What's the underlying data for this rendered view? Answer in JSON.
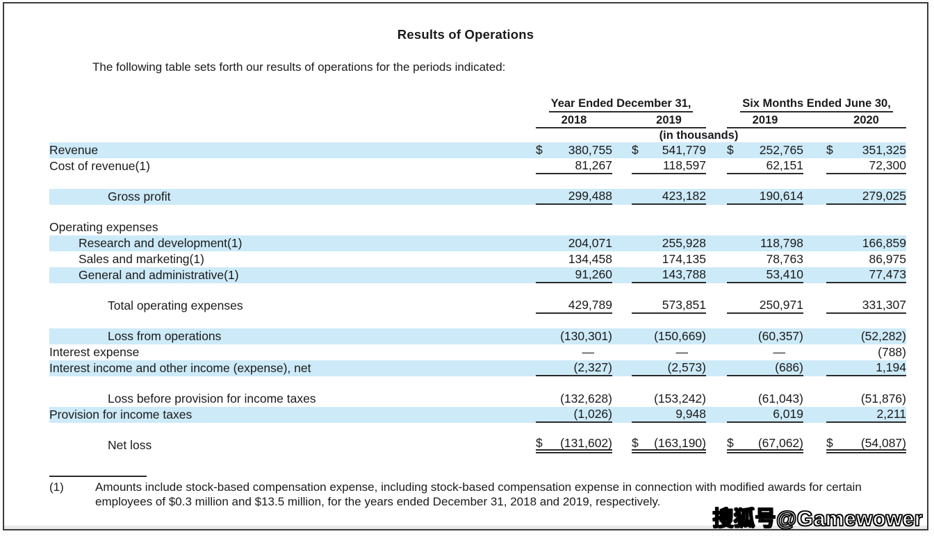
{
  "page": {
    "title": "Results of Operations",
    "intro": "The following table sets forth our results of operations for the periods indicated:"
  },
  "table": {
    "col_groups": [
      {
        "label": "Year Ended December 31,",
        "years": [
          "2018",
          "2019"
        ]
      },
      {
        "label": "Six Months Ended June 30,",
        "years": [
          "2019",
          "2020"
        ]
      }
    ],
    "units_note": "(in thousands)",
    "rows": [
      {
        "label": "Revenue",
        "indent": 0,
        "highlight": true,
        "dollar": true,
        "underline": "none",
        "values": [
          "380,755",
          "541,779",
          "252,765",
          "351,325"
        ]
      },
      {
        "label": "Cost of revenue(1)",
        "indent": 0,
        "highlight": false,
        "dollar": false,
        "underline": "single",
        "values": [
          "81,267",
          "118,597",
          "62,151",
          "72,300"
        ]
      },
      {
        "type": "spacer"
      },
      {
        "label": "Gross profit",
        "indent": 2,
        "highlight": true,
        "dollar": false,
        "underline": "single",
        "values": [
          "299,488",
          "423,182",
          "190,614",
          "279,025"
        ]
      },
      {
        "type": "spacer"
      },
      {
        "label": "Operating expenses",
        "indent": 0,
        "highlight": false,
        "dollar": false,
        "underline": "none",
        "values": null
      },
      {
        "label": "Research and development(1)",
        "indent": 1,
        "highlight": true,
        "dollar": false,
        "underline": "none",
        "values": [
          "204,071",
          "255,928",
          "118,798",
          "166,859"
        ]
      },
      {
        "label": "Sales and marketing(1)",
        "indent": 1,
        "highlight": false,
        "dollar": false,
        "underline": "none",
        "values": [
          "134,458",
          "174,135",
          "78,763",
          "86,975"
        ]
      },
      {
        "label": "General and administrative(1)",
        "indent": 1,
        "highlight": true,
        "dollar": false,
        "underline": "single",
        "values": [
          "91,260",
          "143,788",
          "53,410",
          "77,473"
        ]
      },
      {
        "type": "spacer"
      },
      {
        "label": "Total operating expenses",
        "indent": 2,
        "highlight": false,
        "dollar": false,
        "underline": "single",
        "values": [
          "429,789",
          "573,851",
          "250,971",
          "331,307"
        ]
      },
      {
        "type": "spacer"
      },
      {
        "label": "Loss from operations",
        "indent": 2,
        "highlight": true,
        "dollar": false,
        "underline": "none",
        "values": [
          "(130,301)",
          "(150,669)",
          "(60,357)",
          "(52,282)"
        ]
      },
      {
        "label": "Interest expense",
        "indent": 0,
        "highlight": false,
        "dollar": false,
        "underline": "none",
        "values": [
          "—",
          "—",
          "—",
          "(788)"
        ]
      },
      {
        "label": "Interest income and other income (expense), net",
        "indent": 0,
        "highlight": true,
        "dollar": false,
        "underline": "single",
        "values": [
          "(2,327)",
          "(2,573)",
          "(686)",
          "1,194"
        ]
      },
      {
        "type": "spacer"
      },
      {
        "label": "Loss before provision for income taxes",
        "indent": 2,
        "highlight": false,
        "dollar": false,
        "underline": "none",
        "values": [
          "(132,628)",
          "(153,242)",
          "(61,043)",
          "(51,876)"
        ]
      },
      {
        "label": "Provision for income taxes",
        "indent": 0,
        "highlight": true,
        "dollar": false,
        "underline": "single",
        "values": [
          "(1,026)",
          "9,948",
          "6,019",
          "2,211"
        ]
      },
      {
        "type": "spacer"
      },
      {
        "label": "Net loss",
        "indent": 2,
        "highlight": false,
        "dollar": true,
        "underline": "double",
        "values": [
          "(131,602)",
          "(163,190)",
          "(67,062)",
          "(54,087)"
        ]
      }
    ],
    "footnote": {
      "marker": "(1)",
      "text": "Amounts include stock-based compensation expense, including stock-based compensation expense in connection with modified awards for certain employees of $0.3 million and $13.5 million, for the years ended December 31, 2018 and 2019, respectively."
    }
  },
  "watermark": "搜狐号@Gamewower",
  "colors": {
    "highlight": "#cdeaf8",
    "text": "#1a1a1a",
    "rule": "#2a2a2a"
  }
}
